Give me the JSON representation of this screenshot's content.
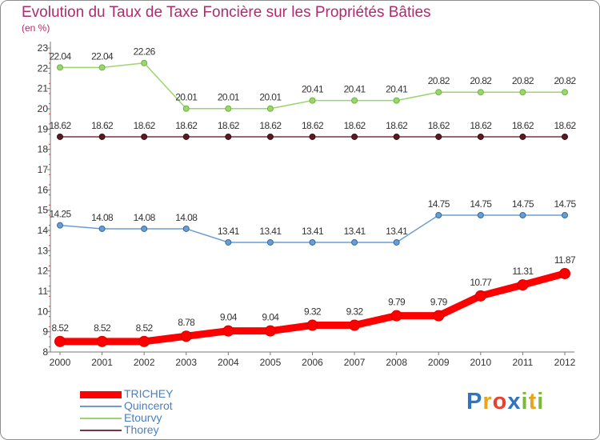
{
  "title": "Evolution du Taux de Taxe Foncière sur les Propriétés Bâties",
  "unit_label": "(en %)",
  "logo": {
    "letters": [
      "P",
      "r",
      "o",
      "x",
      "i",
      "t",
      "i"
    ],
    "colors": [
      "#2e74c0",
      "#e8a41c",
      "#e3432f",
      "#2e74c0",
      "#7cb83b",
      "#e8a41c",
      "#7cb83b"
    ]
  },
  "chart_data": {
    "type": "line",
    "title": "Evolution du Taux de Taxe Foncière sur les Propriétés Bâties",
    "ylabel": "(en %)",
    "xlabel": "",
    "x": [
      "2000",
      "2001",
      "2002",
      "2003",
      "2004",
      "2005",
      "2006",
      "2007",
      "2008",
      "2009",
      "2010",
      "2011",
      "2012"
    ],
    "ylim": [
      8,
      23
    ],
    "yticks": [
      "8",
      "9",
      "10",
      "11",
      "12",
      "13",
      "14",
      "15",
      "16",
      "17",
      "18",
      "19",
      "20",
      "21",
      "22",
      "23"
    ],
    "grid": false,
    "legend_position": "bottom-left",
    "series": [
      {
        "name": "TRICHEY",
        "color": "#ff0000",
        "values": [
          8.52,
          8.52,
          8.52,
          8.78,
          9.04,
          9.04,
          9.32,
          9.32,
          9.79,
          9.79,
          10.77,
          11.31,
          11.87
        ],
        "labels": [
          "8.52",
          "8.52",
          "8.52",
          "8.78",
          "9.04",
          "9.04",
          "9.32",
          "9.32",
          "9.79",
          "9.79",
          "10.77",
          "11.31",
          "11.87"
        ]
      },
      {
        "name": "Quincerot",
        "color": "#6c9dcf",
        "values": [
          14.25,
          14.08,
          14.08,
          14.08,
          13.41,
          13.41,
          13.41,
          13.41,
          13.41,
          14.75,
          14.75,
          14.75,
          14.75
        ],
        "labels": [
          "14.25",
          "14.08",
          "14.08",
          "14.08",
          "13.41",
          "13.41",
          "13.41",
          "13.41",
          "13.41",
          "14.75",
          "14.75",
          "14.75",
          "14.75"
        ]
      },
      {
        "name": "Etourvy",
        "color": "#9ad56e",
        "values": [
          22.04,
          22.04,
          22.26,
          20.01,
          20.01,
          20.01,
          20.41,
          20.41,
          20.41,
          20.82,
          20.82,
          20.82,
          20.82
        ],
        "labels": [
          "22.04",
          "22.04",
          "22.26",
          "20.01",
          "20.01",
          "20.01",
          "20.41",
          "20.41",
          "20.41",
          "20.82",
          "20.82",
          "20.82",
          "20.82"
        ]
      },
      {
        "name": "Thorey",
        "color": "#7a3340",
        "values": [
          18.62,
          18.62,
          18.62,
          18.62,
          18.62,
          18.62,
          18.62,
          18.62,
          18.62,
          18.62,
          18.62,
          18.62,
          18.62
        ],
        "labels": [
          "18.62",
          "18.62",
          "18.62",
          "18.62",
          "18.62",
          "18.62",
          "18.62",
          "18.62",
          "18.62",
          "18.62",
          "18.62",
          "18.62",
          "18.62"
        ]
      }
    ]
  }
}
